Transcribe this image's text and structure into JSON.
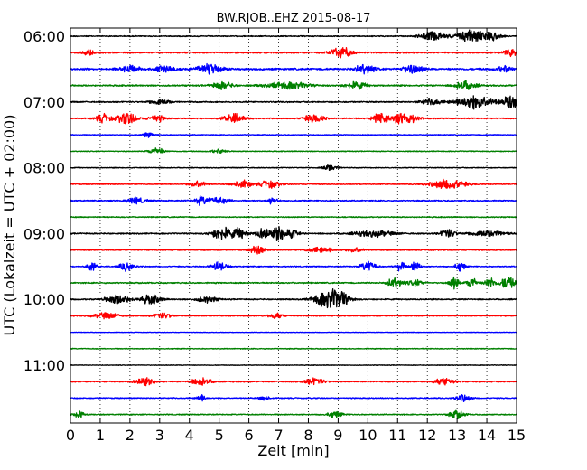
{
  "chart_data": {
    "type": "line",
    "title": "BW.RJOB..EHZ 2015-08-17",
    "xlabel": "Zeit  [min]",
    "ylabel": "UTC (Lokalzeit = UTC + 02:00)",
    "xlim": [
      0,
      15
    ],
    "x_ticks": [
      "0",
      "1",
      "2",
      "3",
      "4",
      "5",
      "6",
      "7",
      "8",
      "9",
      "10",
      "11",
      "12",
      "13",
      "14",
      "15"
    ],
    "y_ticks": [
      "06:00",
      "07:00",
      "08:00",
      "09:00",
      "10:00",
      "11:00"
    ],
    "grid": "vertical dotted",
    "trace_colors": [
      "#000000",
      "#ff0000",
      "#0000ff",
      "#008000"
    ],
    "series": [
      {
        "start": "06:00",
        "color": "#000000",
        "noise": 0.1,
        "bursts": [
          [
            12.2,
            0.5,
            0.9
          ],
          [
            13.4,
            0.5,
            1.2
          ],
          [
            14.1,
            0.4,
            0.9
          ]
        ]
      },
      {
        "start": "06:15",
        "color": "#ff0000",
        "noise": 0.14,
        "bursts": [
          [
            0.6,
            0.2,
            0.6
          ],
          [
            9.1,
            0.4,
            1.1
          ],
          [
            14.8,
            0.3,
            0.6
          ]
        ]
      },
      {
        "start": "06:30",
        "color": "#0000ff",
        "noise": 0.18,
        "bursts": [
          [
            2.0,
            0.4,
            0.6
          ],
          [
            3.2,
            0.4,
            0.7
          ],
          [
            4.7,
            0.5,
            0.9
          ],
          [
            9.9,
            0.4,
            0.9
          ],
          [
            11.5,
            0.4,
            0.8
          ],
          [
            14.6,
            0.3,
            0.6
          ]
        ]
      },
      {
        "start": "06:45",
        "color": "#008000",
        "noise": 0.14,
        "bursts": [
          [
            5.1,
            0.4,
            0.7
          ],
          [
            7.3,
            0.8,
            0.7
          ],
          [
            9.6,
            0.4,
            0.7
          ],
          [
            13.3,
            0.4,
            0.9
          ]
        ]
      },
      {
        "start": "07:00",
        "color": "#000000",
        "noise": 0.12,
        "bursts": [
          [
            3.0,
            0.4,
            0.6
          ],
          [
            12.1,
            0.4,
            0.6
          ],
          [
            13.6,
            0.8,
            1.3
          ],
          [
            14.8,
            0.3,
            1.3
          ]
        ]
      },
      {
        "start": "07:15",
        "color": "#ff0000",
        "noise": 0.12,
        "bursts": [
          [
            1.1,
            0.3,
            0.8
          ],
          [
            1.9,
            0.4,
            1.1
          ],
          [
            2.9,
            0.3,
            0.7
          ],
          [
            5.5,
            0.4,
            0.9
          ],
          [
            8.2,
            0.4,
            0.8
          ],
          [
            10.4,
            0.3,
            0.9
          ],
          [
            11.2,
            0.5,
            1.2
          ]
        ]
      },
      {
        "start": "07:30",
        "color": "#0000ff",
        "noise": 0.08,
        "bursts": [
          [
            2.6,
            0.2,
            0.5
          ]
        ]
      },
      {
        "start": "07:45",
        "color": "#008000",
        "noise": 0.08,
        "bursts": [
          [
            2.9,
            0.3,
            0.7
          ],
          [
            5.0,
            0.3,
            0.4
          ]
        ]
      },
      {
        "start": "08:00",
        "color": "#000000",
        "noise": 0.08,
        "bursts": [
          [
            8.7,
            0.3,
            0.6
          ]
        ]
      },
      {
        "start": "08:15",
        "color": "#ff0000",
        "noise": 0.1,
        "bursts": [
          [
            4.3,
            0.3,
            0.7
          ],
          [
            5.8,
            0.4,
            0.7
          ],
          [
            6.7,
            0.4,
            0.7
          ],
          [
            12.7,
            0.7,
            1.0
          ]
        ]
      },
      {
        "start": "08:30",
        "color": "#0000ff",
        "noise": 0.12,
        "bursts": [
          [
            2.2,
            0.4,
            0.6
          ],
          [
            4.4,
            0.3,
            0.8
          ],
          [
            5.0,
            0.4,
            0.6
          ],
          [
            6.8,
            0.2,
            0.7
          ]
        ]
      },
      {
        "start": "08:45",
        "color": "#008000",
        "noise": 0.1,
        "bursts": []
      },
      {
        "start": "09:00",
        "color": "#000000",
        "noise": 0.12,
        "bursts": [
          [
            5.1,
            0.4,
            1.3
          ],
          [
            5.7,
            0.3,
            1.0
          ],
          [
            6.5,
            0.3,
            1.1
          ],
          [
            7.0,
            0.2,
            1.6
          ],
          [
            7.4,
            0.3,
            1.0
          ],
          [
            10.2,
            0.8,
            0.6
          ],
          [
            12.7,
            0.3,
            0.8
          ],
          [
            14.0,
            0.7,
            0.6
          ]
        ]
      },
      {
        "start": "09:15",
        "color": "#ff0000",
        "noise": 0.1,
        "bursts": [
          [
            6.3,
            0.3,
            0.9
          ],
          [
            8.4,
            0.5,
            0.6
          ],
          [
            9.6,
            0.3,
            0.5
          ]
        ]
      },
      {
        "start": "09:30",
        "color": "#0000ff",
        "noise": 0.1,
        "bursts": [
          [
            0.7,
            0.2,
            0.8
          ],
          [
            1.9,
            0.3,
            0.9
          ],
          [
            5.0,
            0.3,
            0.9
          ],
          [
            10.0,
            0.3,
            1.0
          ],
          [
            11.1,
            0.2,
            1.0
          ],
          [
            11.6,
            0.2,
            1.0
          ],
          [
            13.1,
            0.2,
            0.9
          ]
        ]
      },
      {
        "start": "09:45",
        "color": "#008000",
        "noise": 0.12,
        "bursts": [
          [
            10.9,
            0.3,
            1.0
          ],
          [
            11.6,
            0.3,
            0.6
          ],
          [
            12.9,
            0.2,
            1.1
          ],
          [
            13.5,
            0.2,
            1.1
          ],
          [
            14.1,
            0.2,
            1.1
          ],
          [
            14.7,
            0.3,
            1.2
          ]
        ]
      },
      {
        "start": "10:00",
        "color": "#000000",
        "noise": 0.12,
        "bursts": [
          [
            1.6,
            0.5,
            0.9
          ],
          [
            2.7,
            0.4,
            0.9
          ],
          [
            4.6,
            0.4,
            0.6
          ],
          [
            8.6,
            0.5,
            1.6
          ],
          [
            9.1,
            0.4,
            1.2
          ]
        ]
      },
      {
        "start": "10:15",
        "color": "#ff0000",
        "noise": 0.1,
        "bursts": [
          [
            1.2,
            0.5,
            0.6
          ],
          [
            3.1,
            0.4,
            0.5
          ],
          [
            6.9,
            0.3,
            0.5
          ]
        ]
      },
      {
        "start": "10:30",
        "color": "#0000ff",
        "noise": 0.05,
        "bursts": []
      },
      {
        "start": "10:45",
        "color": "#008000",
        "noise": 0.08,
        "bursts": []
      },
      {
        "start": "11:00",
        "color": "#000000",
        "noise": 0.06,
        "bursts": []
      },
      {
        "start": "11:15",
        "color": "#ff0000",
        "noise": 0.12,
        "bursts": [
          [
            2.5,
            0.4,
            0.7
          ],
          [
            4.4,
            0.4,
            0.7
          ],
          [
            8.2,
            0.4,
            0.6
          ],
          [
            12.6,
            0.4,
            0.7
          ]
        ]
      },
      {
        "start": "11:30",
        "color": "#0000ff",
        "noise": 0.1,
        "bursts": [
          [
            4.4,
            0.2,
            0.6
          ],
          [
            6.5,
            0.2,
            0.5
          ],
          [
            13.2,
            0.3,
            0.7
          ]
        ]
      },
      {
        "start": "11:45",
        "color": "#008000",
        "noise": 0.1,
        "bursts": [
          [
            0.3,
            0.2,
            0.7
          ],
          [
            8.9,
            0.3,
            0.6
          ],
          [
            13.0,
            0.3,
            0.8
          ]
        ]
      }
    ]
  }
}
